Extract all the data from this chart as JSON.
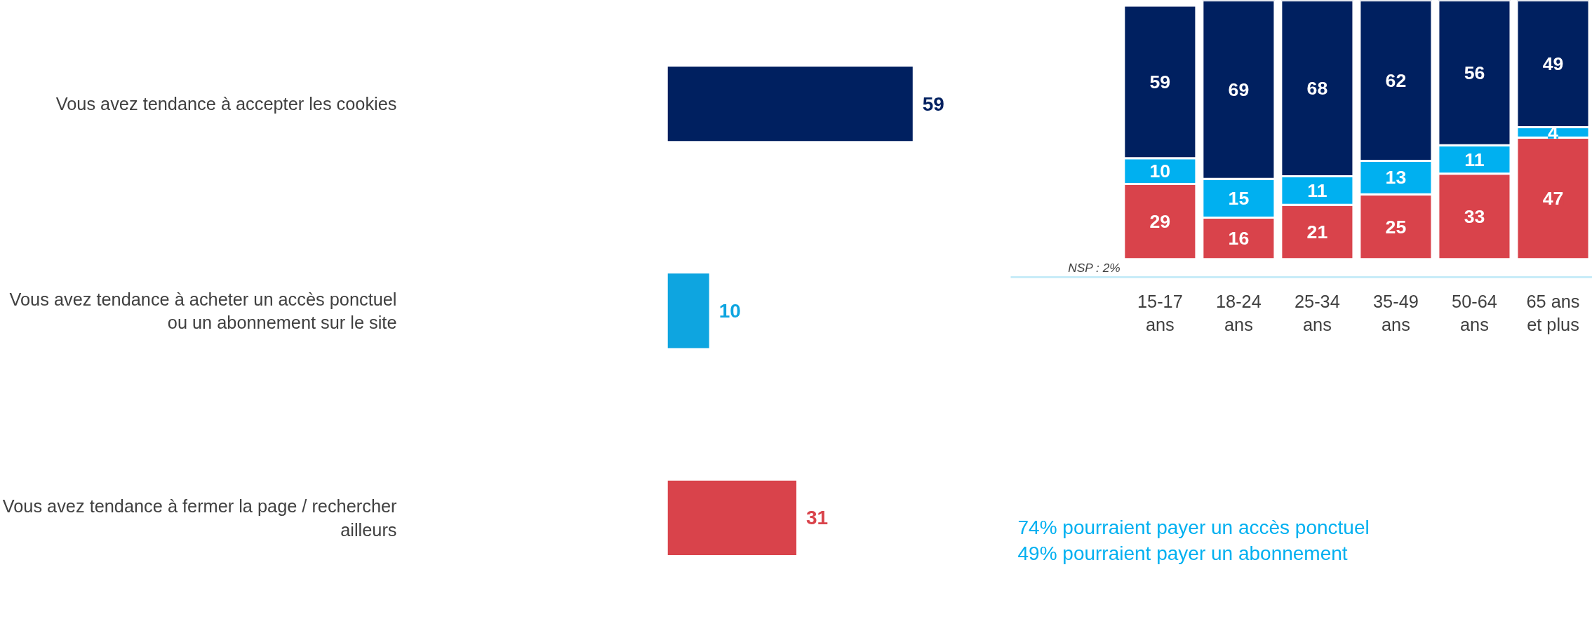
{
  "chart_data": [
    {
      "type": "bar",
      "orientation": "horizontal",
      "categories": [
        "Vous avez tendance à accepter les cookies",
        "Vous avez tendance à acheter un accès ponctuel\nou un abonnement sur le site",
        "Vous avez tendance à fermer la page / rechercher\nailleurs"
      ],
      "values": [
        59,
        10,
        31
      ],
      "colors": [
        "#002060",
        "#0ea5e0",
        "#d9434b"
      ],
      "data_labels": true,
      "annotations": [
        "74% pourraient payer un accès ponctuel\n49% pourraient payer un abonnement"
      ]
    },
    {
      "type": "bar",
      "stacked": true,
      "categories": [
        "15-17\nans",
        "18-24\nans",
        "25-34\nans",
        "35-49\nans",
        "50-64\nans",
        "65 ans\net plus"
      ],
      "data_labels": true,
      "series": [
        {
          "color": "#d9434b",
          "values": [
            29,
            16,
            21,
            25,
            33,
            47
          ]
        },
        {
          "color": "#00b0f0",
          "values": [
            10,
            15,
            11,
            13,
            11,
            4
          ]
        },
        {
          "color": "#002060",
          "values": [
            59,
            69,
            68,
            62,
            56,
            49
          ]
        }
      ],
      "annotations": [
        "NSP : 2%"
      ]
    }
  ]
}
